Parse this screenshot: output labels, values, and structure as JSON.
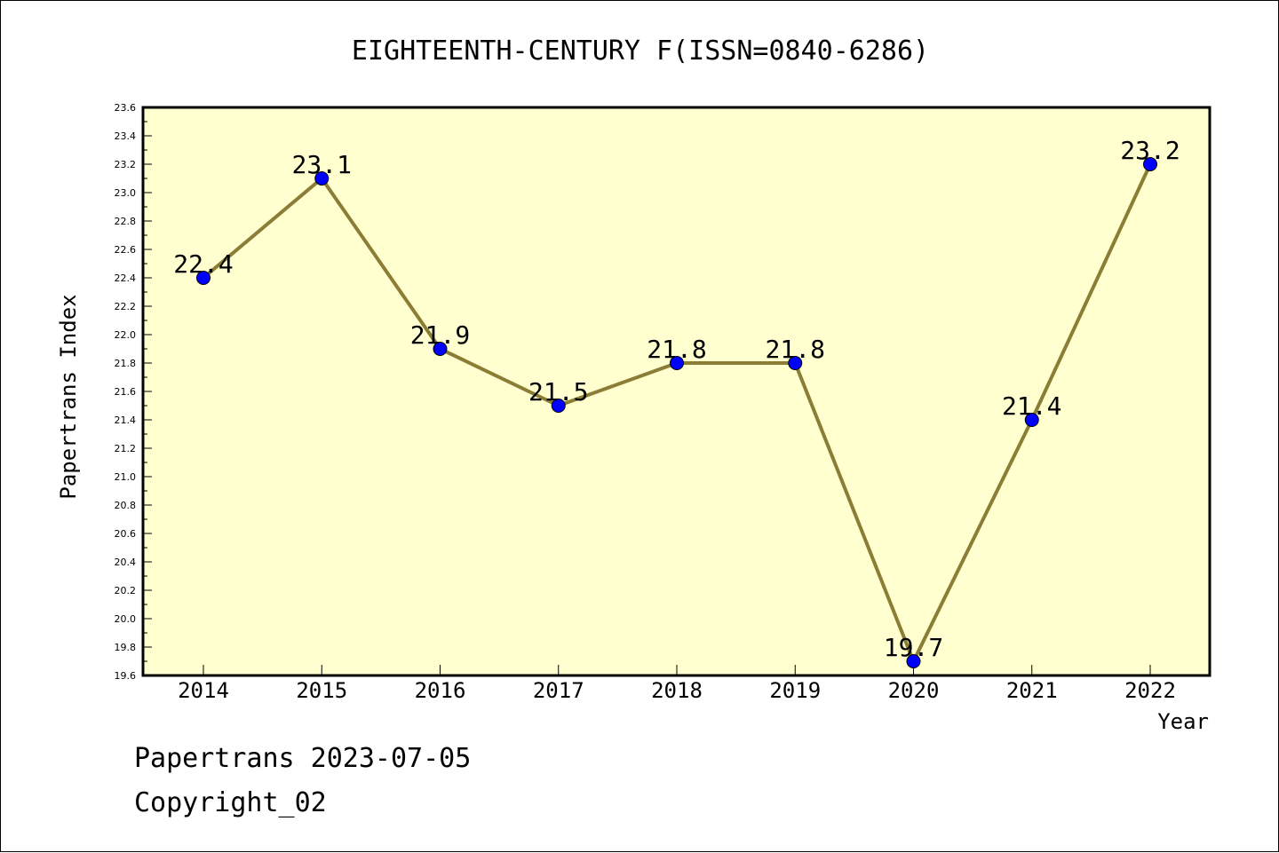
{
  "chart_data": {
    "type": "line",
    "title": "EIGHTEENTH-CENTURY F(ISSN=0840-6286)",
    "xlabel": "Year",
    "ylabel": "Papertrans Index",
    "categories": [
      "2014",
      "2015",
      "2016",
      "2017",
      "2018",
      "2019",
      "2020",
      "2021",
      "2022"
    ],
    "series": [
      {
        "values": [
          22.4,
          23.1,
          21.9,
          21.5,
          21.8,
          21.8,
          19.7,
          21.4,
          23.2
        ]
      }
    ],
    "data_labels": [
      "22.4",
      "23.1",
      "21.9",
      "21.5",
      "21.8",
      "21.8",
      "19.7",
      "21.4",
      "23.2"
    ],
    "ylim": [
      19.6,
      23.6
    ],
    "y_ticks": [
      "19.6",
      "19.8",
      "20.0",
      "20.2",
      "20.4",
      "20.6",
      "20.8",
      "21.0",
      "21.2",
      "21.4",
      "21.6",
      "21.8",
      "22.0",
      "22.2",
      "22.4",
      "22.6",
      "22.8",
      "23.0",
      "23.2",
      "23.4",
      "23.6"
    ],
    "grid": false,
    "legend": "none",
    "colors": {
      "plot_background": "#ffffd0",
      "line": "#8b7d35",
      "marker": "#0000ff",
      "axes": "#000000"
    }
  },
  "footer": {
    "line1": "Papertrans 2023-07-05",
    "line2": "Copyright_02"
  }
}
